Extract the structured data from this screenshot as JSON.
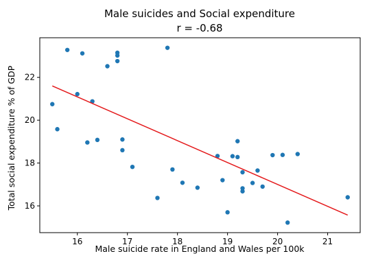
{
  "chart_data": {
    "type": "scatter",
    "title": "Male suicides and Social expenditure",
    "subtitle": "r = -0.68",
    "xlabel": "Male suicide rate in England and Wales per 100k",
    "ylabel": "Total social expenditure % of GDP",
    "xlim": [
      15.25,
      21.65
    ],
    "ylim": [
      14.75,
      23.85
    ],
    "xticks": [
      16,
      17,
      18,
      19,
      20,
      21
    ],
    "yticks": [
      16,
      18,
      20,
      22
    ],
    "grid": false,
    "point_color": "#1f77b4",
    "points": [
      {
        "x": 15.5,
        "y": 20.75
      },
      {
        "x": 15.6,
        "y": 19.58
      },
      {
        "x": 15.8,
        "y": 23.28
      },
      {
        "x": 16.0,
        "y": 21.22
      },
      {
        "x": 16.1,
        "y": 23.12
      },
      {
        "x": 16.2,
        "y": 18.96
      },
      {
        "x": 16.3,
        "y": 20.88
      },
      {
        "x": 16.4,
        "y": 19.08
      },
      {
        "x": 16.6,
        "y": 22.52
      },
      {
        "x": 16.8,
        "y": 23.15
      },
      {
        "x": 16.8,
        "y": 23.02
      },
      {
        "x": 16.8,
        "y": 22.76
      },
      {
        "x": 16.9,
        "y": 19.1
      },
      {
        "x": 16.9,
        "y": 18.6
      },
      {
        "x": 17.1,
        "y": 17.82
      },
      {
        "x": 17.6,
        "y": 16.37
      },
      {
        "x": 17.8,
        "y": 23.38
      },
      {
        "x": 17.9,
        "y": 17.7
      },
      {
        "x": 18.1,
        "y": 17.08
      },
      {
        "x": 18.4,
        "y": 16.85
      },
      {
        "x": 18.8,
        "y": 18.33
      },
      {
        "x": 18.9,
        "y": 17.2
      },
      {
        "x": 19.0,
        "y": 15.7
      },
      {
        "x": 19.1,
        "y": 18.32
      },
      {
        "x": 19.2,
        "y": 19.02
      },
      {
        "x": 19.2,
        "y": 18.28
      },
      {
        "x": 19.3,
        "y": 17.57
      },
      {
        "x": 19.3,
        "y": 16.82
      },
      {
        "x": 19.3,
        "y": 16.68
      },
      {
        "x": 19.5,
        "y": 17.07
      },
      {
        "x": 19.6,
        "y": 17.65
      },
      {
        "x": 19.7,
        "y": 16.9
      },
      {
        "x": 19.9,
        "y": 18.37
      },
      {
        "x": 20.1,
        "y": 18.38
      },
      {
        "x": 20.2,
        "y": 15.22
      },
      {
        "x": 20.4,
        "y": 18.42
      },
      {
        "x": 21.4,
        "y": 16.4
      }
    ],
    "regression_line": {
      "color": "#e41a1c",
      "x": [
        15.5,
        21.4
      ],
      "y": [
        21.6,
        15.57
      ]
    }
  }
}
